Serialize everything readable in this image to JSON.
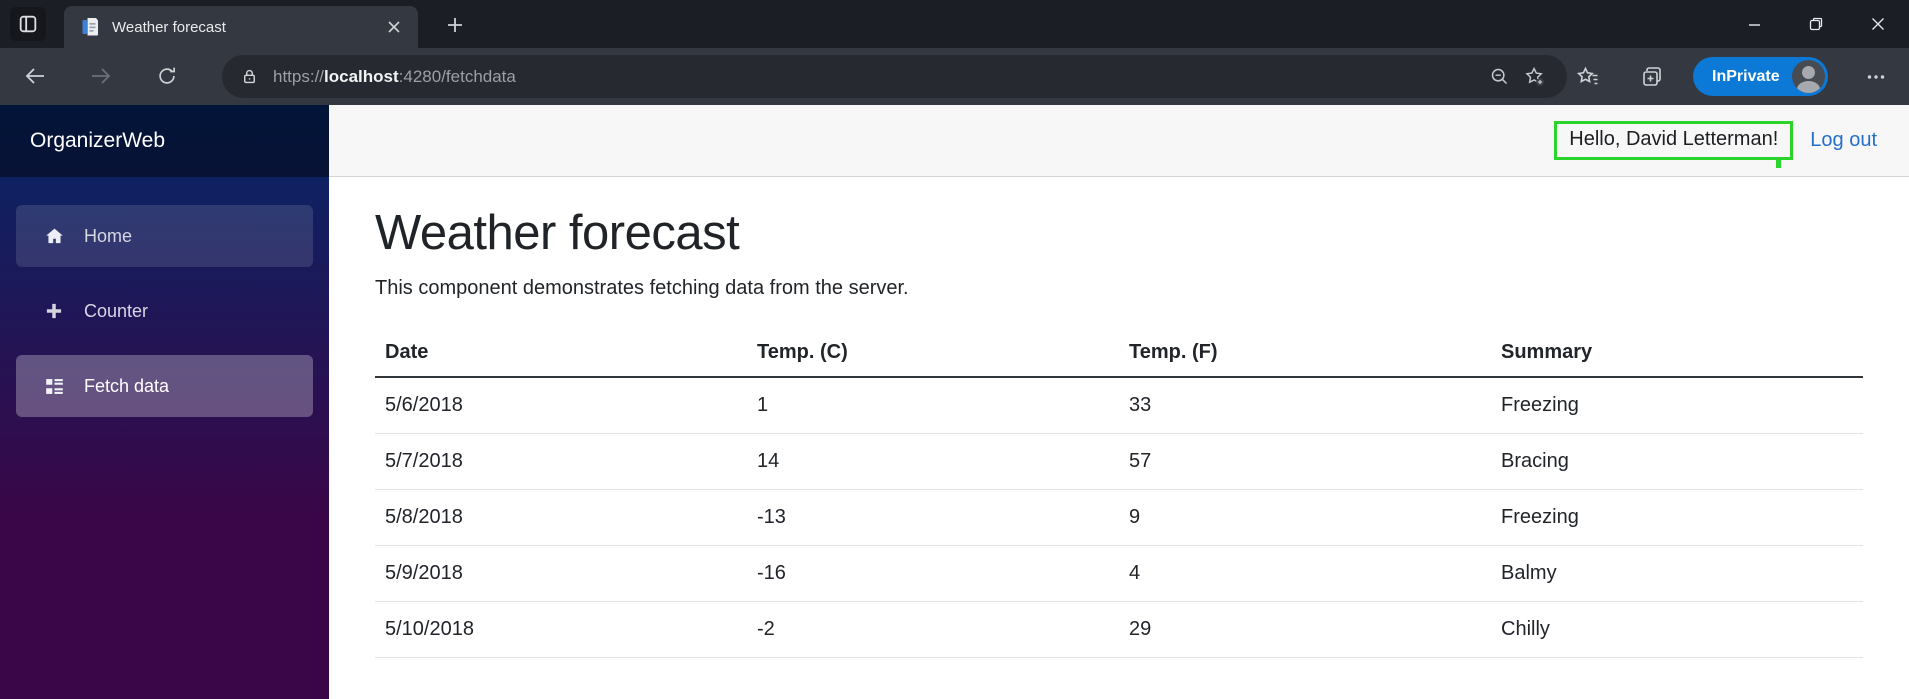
{
  "browser": {
    "tab": {
      "title": "Weather forecast"
    },
    "address": {
      "scheme": "https://",
      "host": "localhost",
      "path": ":4280/fetchdata"
    },
    "inprivate_label": "InPrivate"
  },
  "sidebar": {
    "brand": "OrganizerWeb",
    "items": [
      {
        "label": "Home",
        "icon": "home-icon",
        "state": "hovered"
      },
      {
        "label": "Counter",
        "icon": "plus-icon",
        "state": "normal"
      },
      {
        "label": "Fetch data",
        "icon": "list-icon",
        "state": "active"
      }
    ]
  },
  "header": {
    "greeting": "Hello, David Letterman!",
    "logout_label": "Log out"
  },
  "main": {
    "title": "Weather forecast",
    "subtitle": "This component demonstrates fetching data from the server."
  },
  "table": {
    "headers": [
      "Date",
      "Temp. (C)",
      "Temp. (F)",
      "Summary"
    ],
    "rows": [
      [
        "5/6/2018",
        "1",
        "33",
        "Freezing"
      ],
      [
        "5/7/2018",
        "14",
        "57",
        "Bracing"
      ],
      [
        "5/8/2018",
        "-13",
        "9",
        "Freezing"
      ],
      [
        "5/9/2018",
        "-16",
        "4",
        "Balmy"
      ],
      [
        "5/10/2018",
        "-2",
        "29",
        "Chilly"
      ]
    ]
  },
  "colors": {
    "highlight_green": "#2bd42b",
    "link_blue": "#2470c8",
    "inprivate_blue": "#0b79d5",
    "sidebar_gradient_top": "#052767",
    "sidebar_gradient_bottom": "#3a0647",
    "top_row_bg": "#f7f7f7"
  }
}
